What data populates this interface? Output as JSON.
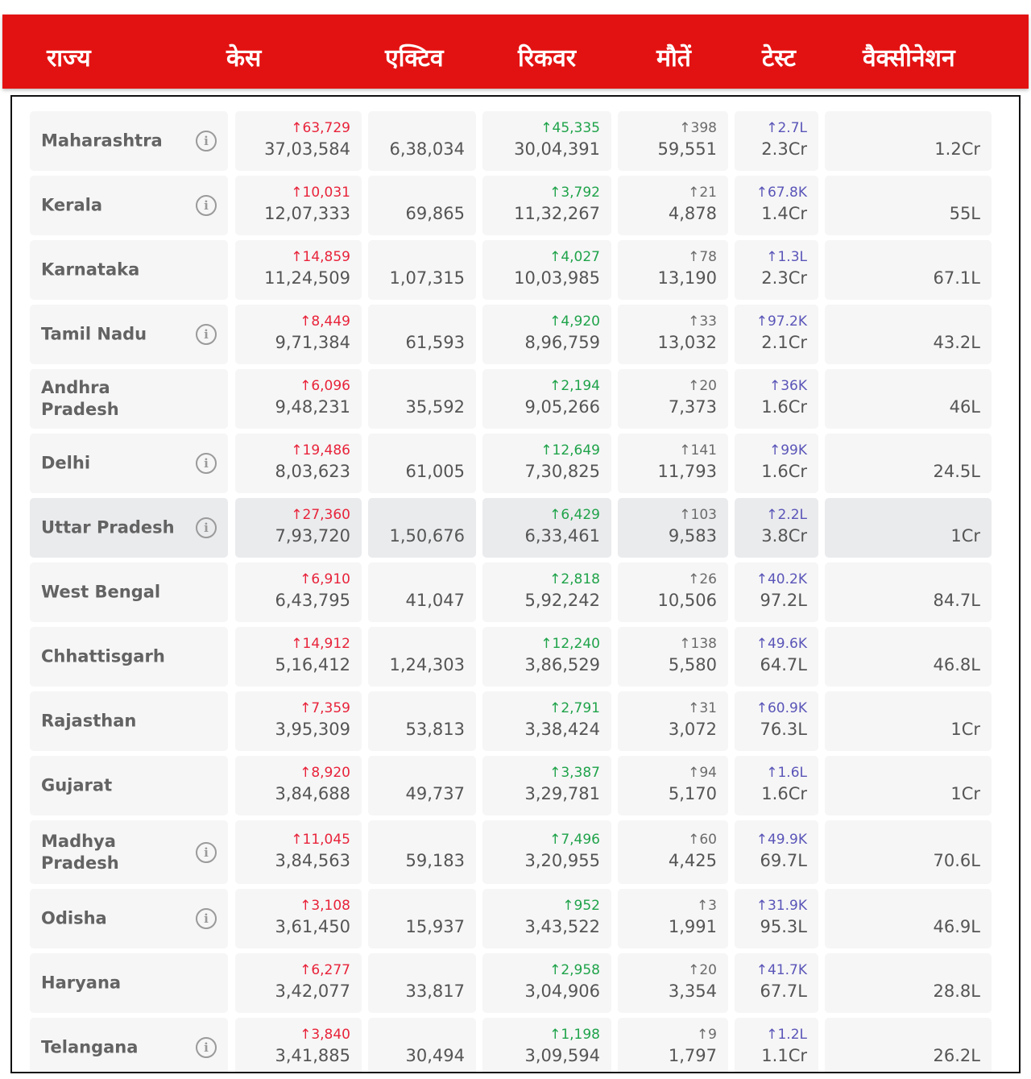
{
  "header": {
    "columns": [
      "राज्य",
      "केस",
      "एक्टिव",
      "रिकवर",
      "मौतें",
      "टेस्ट",
      "वैक्सीनेशन"
    ]
  },
  "colors": {
    "header_bg": "#e31212",
    "cases_delta": "#e8233a",
    "recovered_delta": "#1fa34a",
    "deaths_delta": "#6b6b6b",
    "tests_delta": "#5a55b8"
  },
  "icons": {
    "info": "info-circle-icon",
    "info_glyph": "i",
    "up_arrow": "↑"
  },
  "rows": [
    {
      "state": "Maharashtra",
      "info": true,
      "cases_delta": "↑63,729",
      "cases": "37,03,584",
      "active": "6,38,034",
      "recovered_delta": "↑45,335",
      "recovered": "30,04,391",
      "deaths_delta": "↑398",
      "deaths": "59,551",
      "tests_delta": "↑2.7L",
      "tests": "2.3Cr",
      "vaccination": "1.2Cr"
    },
    {
      "state": "Kerala",
      "info": true,
      "cases_delta": "↑10,031",
      "cases": "12,07,333",
      "active": "69,865",
      "recovered_delta": "↑3,792",
      "recovered": "11,32,267",
      "deaths_delta": "↑21",
      "deaths": "4,878",
      "tests_delta": "↑67.8K",
      "tests": "1.4Cr",
      "vaccination": "55L"
    },
    {
      "state": "Karnataka",
      "info": false,
      "cases_delta": "↑14,859",
      "cases": "11,24,509",
      "active": "1,07,315",
      "recovered_delta": "↑4,027",
      "recovered": "10,03,985",
      "deaths_delta": "↑78",
      "deaths": "13,190",
      "tests_delta": "↑1.3L",
      "tests": "2.3Cr",
      "vaccination": "67.1L"
    },
    {
      "state": "Tamil Nadu",
      "info": true,
      "cases_delta": "↑8,449",
      "cases": "9,71,384",
      "active": "61,593",
      "recovered_delta": "↑4,920",
      "recovered": "8,96,759",
      "deaths_delta": "↑33",
      "deaths": "13,032",
      "tests_delta": "↑97.2K",
      "tests": "2.1Cr",
      "vaccination": "43.2L"
    },
    {
      "state": "Andhra Pradesh",
      "info": false,
      "cases_delta": "↑6,096",
      "cases": "9,48,231",
      "active": "35,592",
      "recovered_delta": "↑2,194",
      "recovered": "9,05,266",
      "deaths_delta": "↑20",
      "deaths": "7,373",
      "tests_delta": "↑36K",
      "tests": "1.6Cr",
      "vaccination": "46L"
    },
    {
      "state": "Delhi",
      "info": true,
      "cases_delta": "↑19,486",
      "cases": "8,03,623",
      "active": "61,005",
      "recovered_delta": "↑12,649",
      "recovered": "7,30,825",
      "deaths_delta": "↑141",
      "deaths": "11,793",
      "tests_delta": "↑99K",
      "tests": "1.6Cr",
      "vaccination": "24.5L"
    },
    {
      "state": "Uttar Pradesh",
      "info": true,
      "highlight": true,
      "cases_delta": "↑27,360",
      "cases": "7,93,720",
      "active": "1,50,676",
      "recovered_delta": "↑6,429",
      "recovered": "6,33,461",
      "deaths_delta": "↑103",
      "deaths": "9,583",
      "tests_delta": "↑2.2L",
      "tests": "3.8Cr",
      "vaccination": "1Cr"
    },
    {
      "state": "West Bengal",
      "info": false,
      "cases_delta": "↑6,910",
      "cases": "6,43,795",
      "active": "41,047",
      "recovered_delta": "↑2,818",
      "recovered": "5,92,242",
      "deaths_delta": "↑26",
      "deaths": "10,506",
      "tests_delta": "↑40.2K",
      "tests": "97.2L",
      "vaccination": "84.7L"
    },
    {
      "state": "Chhattisgarh",
      "info": false,
      "cases_delta": "↑14,912",
      "cases": "5,16,412",
      "active": "1,24,303",
      "recovered_delta": "↑12,240",
      "recovered": "3,86,529",
      "deaths_delta": "↑138",
      "deaths": "5,580",
      "tests_delta": "↑49.6K",
      "tests": "64.7L",
      "vaccination": "46.8L"
    },
    {
      "state": "Rajasthan",
      "info": false,
      "cases_delta": "↑7,359",
      "cases": "3,95,309",
      "active": "53,813",
      "recovered_delta": "↑2,791",
      "recovered": "3,38,424",
      "deaths_delta": "↑31",
      "deaths": "3,072",
      "tests_delta": "↑60.9K",
      "tests": "76.3L",
      "vaccination": "1Cr"
    },
    {
      "state": "Gujarat",
      "info": false,
      "cases_delta": "↑8,920",
      "cases": "3,84,688",
      "active": "49,737",
      "recovered_delta": "↑3,387",
      "recovered": "3,29,781",
      "deaths_delta": "↑94",
      "deaths": "5,170",
      "tests_delta": "↑1.6L",
      "tests": "1.6Cr",
      "vaccination": "1Cr"
    },
    {
      "state": "Madhya Pradesh",
      "info": true,
      "cases_delta": "↑11,045",
      "cases": "3,84,563",
      "active": "59,183",
      "recovered_delta": "↑7,496",
      "recovered": "3,20,955",
      "deaths_delta": "↑60",
      "deaths": "4,425",
      "tests_delta": "↑49.9K",
      "tests": "69.7L",
      "vaccination": "70.6L"
    },
    {
      "state": "Odisha",
      "info": true,
      "cases_delta": "↑3,108",
      "cases": "3,61,450",
      "active": "15,937",
      "recovered_delta": "↑952",
      "recovered": "3,43,522",
      "deaths_delta": "↑3",
      "deaths": "1,991",
      "tests_delta": "↑31.9K",
      "tests": "95.3L",
      "vaccination": "46.9L"
    },
    {
      "state": "Haryana",
      "info": false,
      "cases_delta": "↑6,277",
      "cases": "3,42,077",
      "active": "33,817",
      "recovered_delta": "↑2,958",
      "recovered": "3,04,906",
      "deaths_delta": "↑20",
      "deaths": "3,354",
      "tests_delta": "↑41.7K",
      "tests": "67.7L",
      "vaccination": "28.8L"
    },
    {
      "state": "Telangana",
      "info": true,
      "cases_delta": "↑3,840",
      "cases": "3,41,885",
      "active": "30,494",
      "recovered_delta": "↑1,198",
      "recovered": "3,09,594",
      "deaths_delta": "↑9",
      "deaths": "1,797",
      "tests_delta": "↑1.2L",
      "tests": "1.1Cr",
      "vaccination": "26.2L"
    }
  ]
}
